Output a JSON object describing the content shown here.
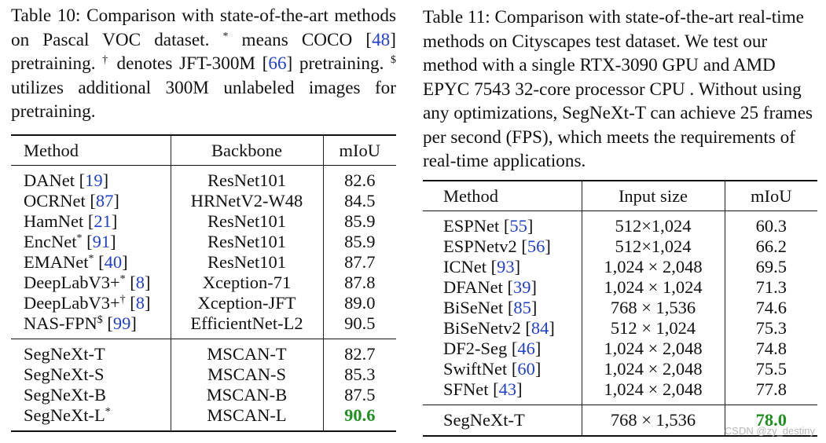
{
  "table10": {
    "caption": {
      "pre": "Table 10: Comparison with state-of-the-art methods on Pascal VOC dataset. ",
      "s1": "*",
      "t1": " means COCO [",
      "r1": "48",
      "t2": "] pretraining. ",
      "s2": "†",
      "t3": " denotes JFT-300M [",
      "r2": "66",
      "t4": "] pretraining. ",
      "s3": "$",
      "t5": " utilizes additional 300M unlabeled images for pretraining."
    },
    "headers": {
      "method": "Method",
      "backbone": "Backbone",
      "miou": "mIoU"
    },
    "rows": [
      {
        "name": "DANet",
        "sup": "",
        "ref": "19",
        "backbone": "ResNet101",
        "miou": "82.6"
      },
      {
        "name": "OCRNet",
        "sup": "",
        "ref": "87",
        "backbone": "HRNetV2-W48",
        "miou": "84.5"
      },
      {
        "name": "HamNet",
        "sup": "",
        "ref": "21",
        "backbone": "ResNet101",
        "miou": "85.9"
      },
      {
        "name": "EncNet",
        "sup": "*",
        "ref": "91",
        "backbone": "ResNet101",
        "miou": "85.9"
      },
      {
        "name": "EMANet",
        "sup": "*",
        "ref": "40",
        "backbone": "ResNet101",
        "miou": "87.7"
      },
      {
        "name": "DeepLabV3+",
        "sup": "*",
        "ref": "8",
        "backbone": "Xception-71",
        "miou": "87.8"
      },
      {
        "name": "DeepLabV3+",
        "sup": "†",
        "ref": "8",
        "backbone": "Xception-JFT",
        "miou": "89.0"
      },
      {
        "name": "NAS-FPN",
        "sup": "$",
        "ref": "99",
        "backbone": "EfficientNet-L2",
        "miou": "90.5"
      }
    ],
    "ours": [
      {
        "name": "SegNeXt-T",
        "sup": "",
        "backbone": "MSCAN-T",
        "miou": "82.7"
      },
      {
        "name": "SegNeXt-S",
        "sup": "",
        "backbone": "MSCAN-S",
        "miou": "85.3"
      },
      {
        "name": "SegNeXt-B",
        "sup": "",
        "backbone": "MSCAN-B",
        "miou": "87.5"
      },
      {
        "name": "SegNeXt-L",
        "sup": "*",
        "backbone": "MSCAN-L",
        "miou": "90.6"
      }
    ]
  },
  "table11": {
    "caption": "Table 11: Comparison with state-of-the-art real-time methods on Cityscapes test dataset. We test our method with a single RTX-3090 GPU and AMD EPYC 7543 32-core processor CPU . Without using any optimizations, SegNeXt-T can achieve 25 frames per second (FPS), which meets the requirements of real-time applications.",
    "headers": {
      "method": "Method",
      "input": "Input size",
      "miou": "mIoU"
    },
    "rows": [
      {
        "name": "ESPNet",
        "ref": "55",
        "input": "512×1,024",
        "miou": "60.3"
      },
      {
        "name": "ESPNetv2",
        "ref": "56",
        "input": "512×1,024",
        "miou": "66.2"
      },
      {
        "name": "ICNet",
        "ref": "93",
        "input": "1,024 × 2,048",
        "miou": "69.5"
      },
      {
        "name": "DFANet",
        "ref": "39",
        "input": "1,024 × 1,024",
        "miou": "71.3"
      },
      {
        "name": "BiSeNet",
        "ref": "85",
        "input": "768 × 1,536",
        "miou": "74.6"
      },
      {
        "name": "BiSeNetv2",
        "ref": "84",
        "input": "512 × 1,024",
        "miou": "75.3"
      },
      {
        "name": "DF2-Seg",
        "ref": "46",
        "input": "1,024 × 2,048",
        "miou": "74.8"
      },
      {
        "name": "SwiftNet",
        "ref": "60",
        "input": "1,024 × 2,048",
        "miou": "75.5"
      },
      {
        "name": "SFNet",
        "ref": "43",
        "input": "1,024 × 2,048",
        "miou": "77.8"
      }
    ],
    "ours": {
      "name": "SegNeXt-T",
      "input": "768 × 1,536",
      "miou": "78.0"
    }
  },
  "watermark": "CSDN @zy_destiny",
  "colors": {
    "ref_link": "#2140c8",
    "best_result": "#1f8f1f"
  }
}
